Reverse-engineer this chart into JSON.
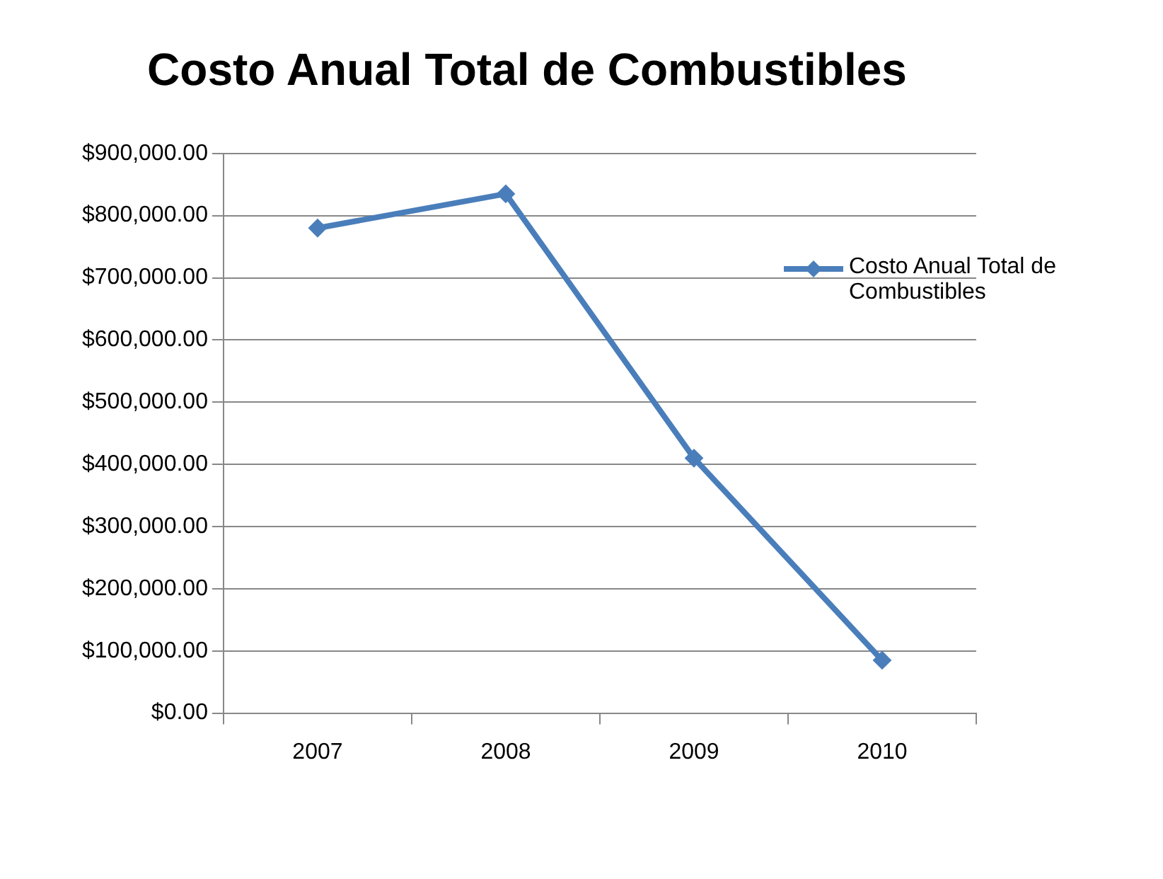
{
  "chart_data": {
    "type": "line",
    "title": "Costo Anual Total de Combustibles",
    "categories": [
      "2007",
      "2008",
      "2009",
      "2010"
    ],
    "series": [
      {
        "name": "Costo Anual Total de Combustibles",
        "color": "#4a7ebb",
        "values": [
          780000,
          835000,
          410000,
          85000
        ]
      }
    ],
    "ylim": [
      0,
      900000
    ],
    "yticks": [
      {
        "value": 0,
        "label": "$0.00"
      },
      {
        "value": 100000,
        "label": "$100,000.00"
      },
      {
        "value": 200000,
        "label": "$200,000.00"
      },
      {
        "value": 300000,
        "label": "$300,000.00"
      },
      {
        "value": 400000,
        "label": "$400,000.00"
      },
      {
        "value": 500000,
        "label": "$500,000.00"
      },
      {
        "value": 600000,
        "label": "$600,000.00"
      },
      {
        "value": 700000,
        "label": "$700,000.00"
      },
      {
        "value": 800000,
        "label": "$800,000.00"
      },
      {
        "value": 900000,
        "label": "$900,000.00"
      }
    ],
    "grid": "y",
    "legend": "right",
    "marker": "diamond",
    "line_style": "solid"
  }
}
